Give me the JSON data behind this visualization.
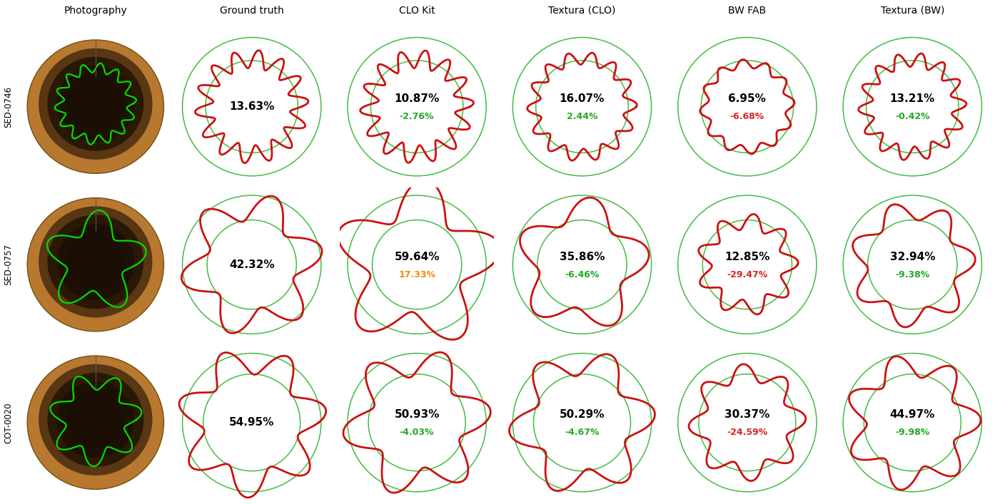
{
  "rows": [
    "SED-0746",
    "SED-0757",
    "COT-0020"
  ],
  "cols": [
    "Photography",
    "Ground truth",
    "CLO Kit",
    "Textura (CLO)",
    "BW FAB",
    "Textura (BW)"
  ],
  "background": "#ffffff",
  "cell_data": {
    "SED-0746": {
      "Ground truth": {
        "main_pct": "13.63%",
        "diff_pct": null,
        "diff_color": null,
        "waves": 14,
        "wave_amp": 0.19,
        "base_r": 0.62,
        "green_inner_r": 0.6,
        "green_outer_r": 0.9,
        "phase": 0.22
      },
      "CLO Kit": {
        "main_pct": "10.87%",
        "diff_pct": "-2.76%",
        "diff_color": "#22aa22",
        "waves": 14,
        "wave_amp": 0.19,
        "base_r": 0.62,
        "green_inner_r": 0.6,
        "green_outer_r": 0.9,
        "phase": 0.6
      },
      "Textura (CLO)": {
        "main_pct": "16.07%",
        "diff_pct": "2.44%",
        "diff_color": "#22aa22",
        "waves": 14,
        "wave_amp": 0.13,
        "base_r": 0.63,
        "green_inner_r": 0.6,
        "green_outer_r": 0.9,
        "phase": 1.1
      },
      "BW FAB": {
        "main_pct": "6.95%",
        "diff_pct": "-6.68%",
        "diff_color": "#dd2222",
        "waves": 12,
        "wave_amp": 0.1,
        "base_r": 0.56,
        "green_inner_r": 0.6,
        "green_outer_r": 0.9,
        "phase": 0.4
      },
      "Textura (BW)": {
        "main_pct": "13.21%",
        "diff_pct": "-0.42%",
        "diff_color": "#22aa22",
        "waves": 14,
        "wave_amp": 0.15,
        "base_r": 0.61,
        "green_inner_r": 0.6,
        "green_outer_r": 0.9,
        "phase": 0.8
      }
    },
    "SED-0757": {
      "Ground truth": {
        "main_pct": "42.32%",
        "diff_pct": null,
        "diff_color": null,
        "waves": 6,
        "wave_amp": 0.24,
        "base_r": 0.75,
        "green_inner_r": 0.58,
        "green_outer_r": 0.9,
        "phase": 0.3
      },
      "CLO Kit": {
        "main_pct": "59.64%",
        "diff_pct": "17.33%",
        "diff_color": "#ff8800",
        "waves": 5,
        "wave_amp": 0.28,
        "base_r": 0.86,
        "green_inner_r": 0.58,
        "green_outer_r": 0.9,
        "phase": 0.5
      },
      "Textura (CLO)": {
        "main_pct": "35.86%",
        "diff_pct": "-6.46%",
        "diff_color": "#22aa22",
        "waves": 5,
        "wave_amp": 0.22,
        "base_r": 0.72,
        "green_inner_r": 0.58,
        "green_outer_r": 0.9,
        "phase": 0.7
      },
      "BW FAB": {
        "main_pct": "12.85%",
        "diff_pct": "-29.47%",
        "diff_color": "#dd2222",
        "waves": 9,
        "wave_amp": 0.18,
        "base_r": 0.56,
        "green_inner_r": 0.58,
        "green_outer_r": 0.9,
        "phase": 1.2
      },
      "Textura (BW)": {
        "main_pct": "32.94%",
        "diff_pct": "-9.38%",
        "diff_color": "#22aa22",
        "waves": 7,
        "wave_amp": 0.17,
        "base_r": 0.7,
        "green_inner_r": 0.58,
        "green_outer_r": 0.9,
        "phase": 0.9
      }
    },
    "COT-0020": {
      "Ground truth": {
        "main_pct": "54.95%",
        "diff_pct": null,
        "diff_color": null,
        "waves": 7,
        "wave_amp": 0.22,
        "base_r": 0.8,
        "green_inner_r": 0.63,
        "green_outer_r": 0.9,
        "phase": 0.4
      },
      "CLO Kit": {
        "main_pct": "50.93%",
        "diff_pct": "-4.03%",
        "diff_color": "#22aa22",
        "waves": 6,
        "wave_amp": 0.24,
        "base_r": 0.78,
        "green_inner_r": 0.63,
        "green_outer_r": 0.9,
        "phase": 0.6
      },
      "Textura (CLO)": {
        "main_pct": "50.29%",
        "diff_pct": "-4.67%",
        "diff_color": "#22aa22",
        "waves": 6,
        "wave_amp": 0.22,
        "base_r": 0.78,
        "green_inner_r": 0.63,
        "green_outer_r": 0.9,
        "phase": 0.8
      },
      "BW FAB": {
        "main_pct": "30.37%",
        "diff_pct": "-24.59%",
        "diff_color": "#dd2222",
        "waves": 8,
        "wave_amp": 0.17,
        "base_r": 0.65,
        "green_inner_r": 0.63,
        "green_outer_r": 0.9,
        "phase": 1.0
      },
      "Textura (BW)": {
        "main_pct": "44.97%",
        "diff_pct": "-9.98%",
        "diff_color": "#22aa22",
        "waves": 7,
        "wave_amp": 0.2,
        "base_r": 0.74,
        "green_inner_r": 0.63,
        "green_outer_r": 0.9,
        "phase": 1.3
      }
    }
  },
  "photo_shapes": {
    "SED-0746": {
      "waves": 14,
      "wave_amp": 0.13,
      "base_r": 0.52,
      "phase": 0.2
    },
    "SED-0757": {
      "waves": 5,
      "wave_amp": 0.28,
      "base_r": 0.58,
      "phase": 0.4
    },
    "COT-0020": {
      "waves": 7,
      "wave_amp": 0.22,
      "base_r": 0.55,
      "phase": 0.3
    }
  },
  "green_color": "#44bb44",
  "red_color": "#cc1111",
  "text_color": "#000000",
  "row_label_fontsize": 8.5,
  "col_label_fontsize": 10,
  "main_pct_fontsize": 11,
  "diff_pct_fontsize": 9
}
